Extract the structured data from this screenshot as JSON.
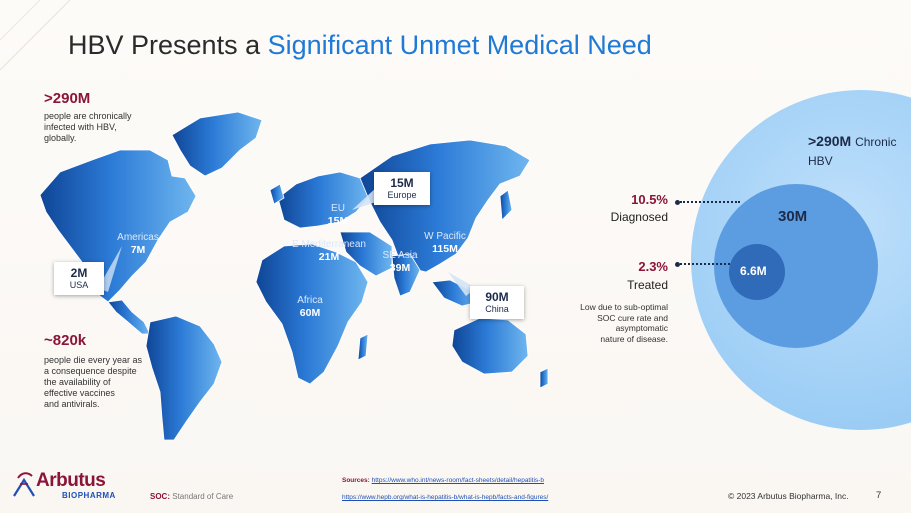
{
  "title": {
    "prefix": "HBV Presents a ",
    "accent": "Significant Unmet Medical Need"
  },
  "left_stats": {
    "chronic_value": ">290M",
    "chronic_text": [
      "people are chronically",
      "infected with HBV,",
      "globally."
    ],
    "deaths_value": "~820k",
    "deaths_text": [
      "people die every year as",
      "a consequence despite",
      "the availability of",
      "effective vaccines",
      "and antivirals."
    ]
  },
  "regions": [
    {
      "name": "Americas",
      "value": "7M"
    },
    {
      "name": "EU",
      "value": "15M"
    },
    {
      "name": "E Mediterranean",
      "value": "21M"
    },
    {
      "name": "SE Asia",
      "value": "39M"
    },
    {
      "name": "W Pacific",
      "value": "115M"
    },
    {
      "name": "Africa",
      "value": "60M"
    }
  ],
  "callouts": [
    {
      "value": "2M",
      "label": "USA"
    },
    {
      "value": "15M",
      "label": "Europe"
    },
    {
      "value": "90M",
      "label": "China"
    }
  ],
  "funnel": {
    "outer_value": ">290M",
    "outer_label_1": "Chronic",
    "outer_label_2": "HBV",
    "middle_value": "30M",
    "inner_value": "6.6M",
    "diagnosed_pct": "10.5%",
    "diagnosed_label": "Diagnosed",
    "treated_pct": "2.3%",
    "treated_label": "Treated",
    "note": [
      "Low due to sub-optimal",
      "SOC cure rate and",
      "asymptomatic",
      "nature of disease."
    ]
  },
  "footer": {
    "sources_label": "Sources:",
    "source_1": "https://www.who.int/news-room/fact-sheets/detail/hepatitis-b",
    "source_2": "https://www.hepb.org/what-is-hepatitis-b/what-is-hepb/facts-and-figures/",
    "soc_label": "SOC:",
    "soc_text": "Standard of Care",
    "copyright": "© 2023 Arbutus Biopharma, Inc.",
    "page": "7",
    "logo_name": "Arbutus",
    "logo_sub": "BIOPHARMA"
  },
  "colors": {
    "accent": "#1f7ad6",
    "stat": "#8b1538",
    "map_dark": "#1550a8",
    "map_light": "#5aa8ea"
  }
}
